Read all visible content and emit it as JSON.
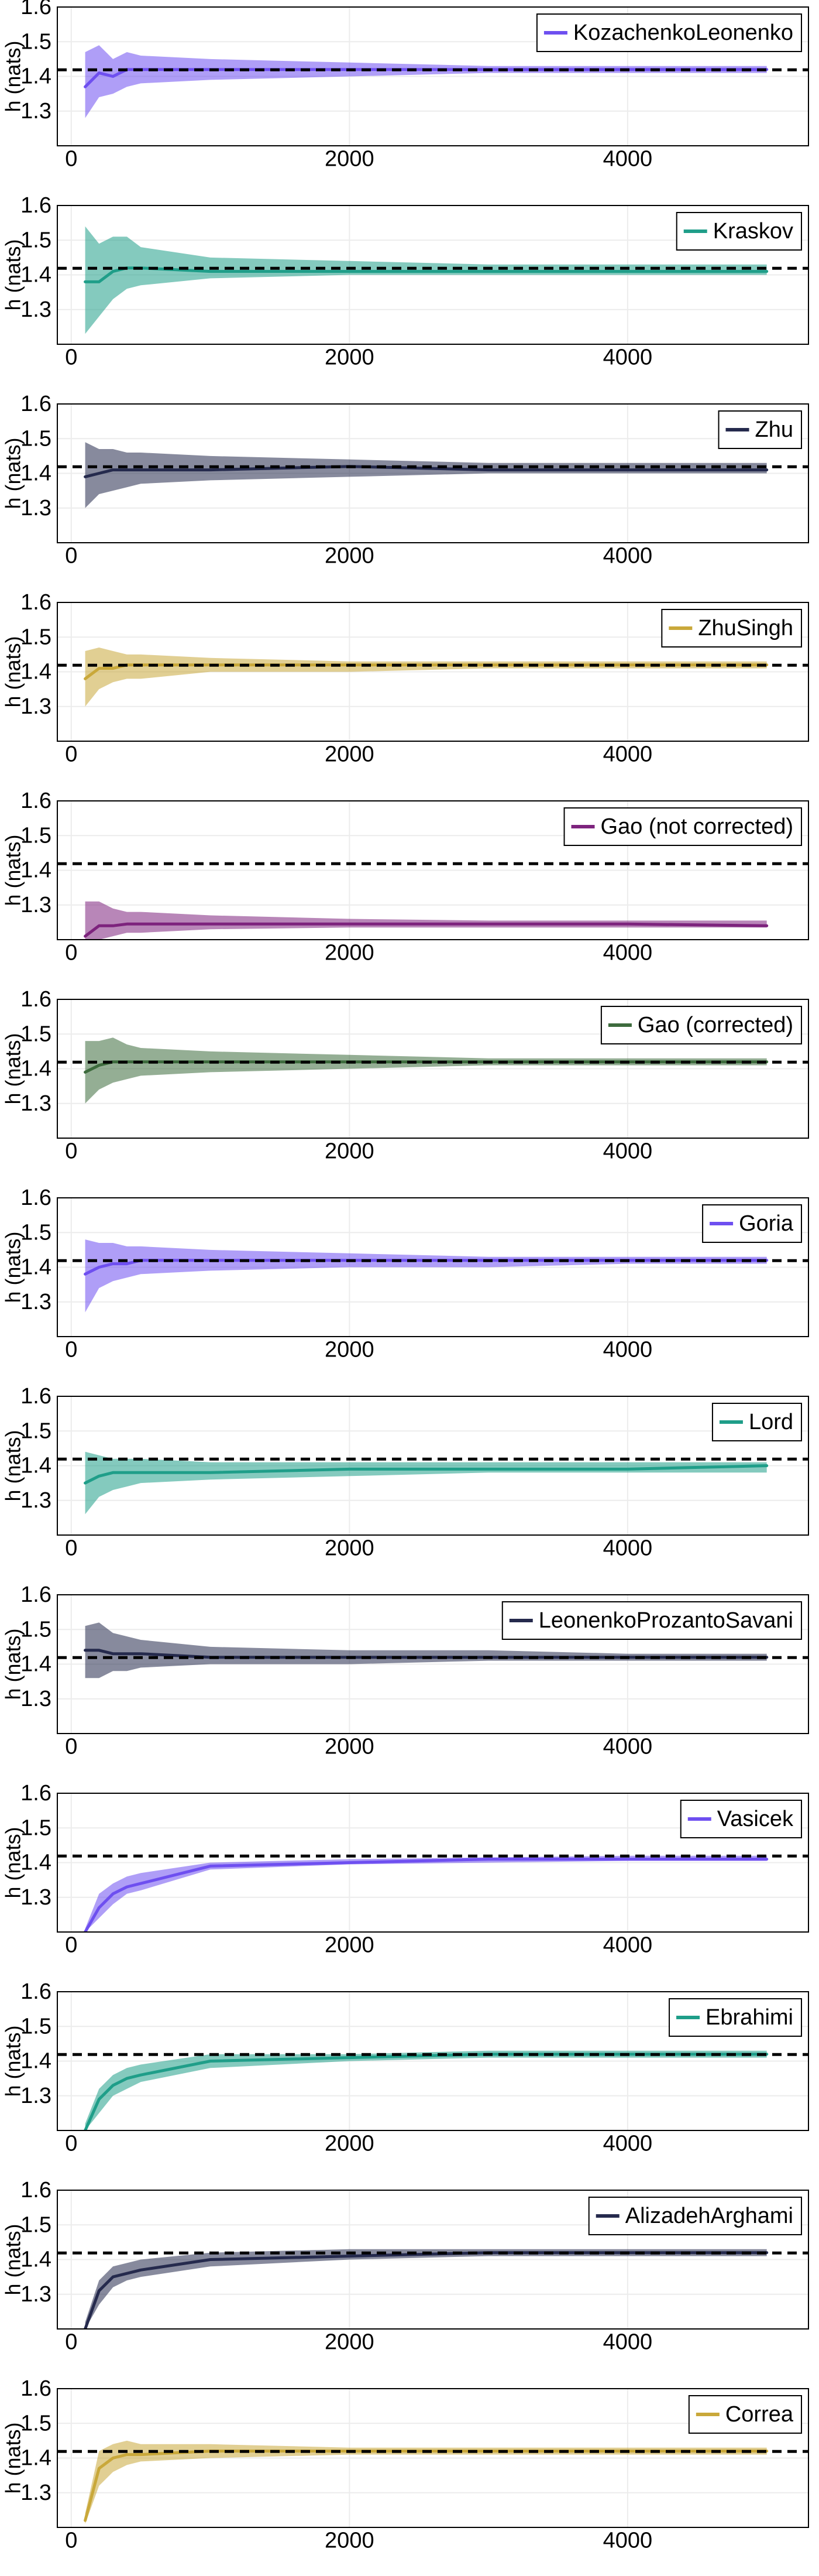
{
  "figure": {
    "reference_value": 1.419,
    "colors": {
      "grid": "#ececec",
      "frame": "#000000",
      "reference_line": "#000000"
    }
  },
  "chart_data": [
    {
      "type": "line",
      "name": "KozachenkoLeonenko",
      "color": "#6e4ff0",
      "x": [
        100,
        200,
        300,
        400,
        500,
        1000,
        2000,
        3000,
        4000,
        5000
      ],
      "mean": [
        1.37,
        1.41,
        1.4,
        1.42,
        1.42,
        1.42,
        1.42,
        1.42,
        1.42,
        1.42
      ],
      "lower": [
        1.28,
        1.34,
        1.35,
        1.37,
        1.38,
        1.39,
        1.4,
        1.41,
        1.41,
        1.41
      ],
      "upper": [
        1.47,
        1.49,
        1.45,
        1.47,
        1.46,
        1.45,
        1.44,
        1.43,
        1.43,
        1.43
      ],
      "ylim": [
        1.2,
        1.6
      ],
      "xlim": [
        -100,
        5300
      ],
      "yticks": [
        1.3,
        1.4,
        1.5,
        1.6
      ],
      "xticks": [
        0,
        2000,
        4000
      ],
      "ylabel": "h (nats)",
      "xlabel": "",
      "legend": "top-right",
      "grid": true
    },
    {
      "type": "line",
      "name": "Kraskov",
      "color": "#1f9e89",
      "x": [
        100,
        200,
        300,
        400,
        500,
        1000,
        2000,
        3000,
        4000,
        5000
      ],
      "mean": [
        1.38,
        1.38,
        1.41,
        1.42,
        1.42,
        1.41,
        1.41,
        1.41,
        1.41,
        1.41
      ],
      "lower": [
        1.23,
        1.28,
        1.33,
        1.36,
        1.37,
        1.39,
        1.4,
        1.4,
        1.4,
        1.4
      ],
      "upper": [
        1.54,
        1.49,
        1.51,
        1.51,
        1.48,
        1.45,
        1.44,
        1.43,
        1.43,
        1.43
      ],
      "ylim": [
        1.2,
        1.6
      ],
      "xlim": [
        -100,
        5300
      ],
      "yticks": [
        1.3,
        1.4,
        1.5,
        1.6
      ],
      "xticks": [
        0,
        2000,
        4000
      ],
      "ylabel": "h (nats)",
      "xlabel": "",
      "legend": "top-right",
      "grid": true
    },
    {
      "type": "line",
      "name": "Zhu",
      "color": "#252a4d",
      "x": [
        100,
        200,
        300,
        400,
        500,
        1000,
        2000,
        3000,
        4000,
        5000
      ],
      "mean": [
        1.39,
        1.4,
        1.41,
        1.41,
        1.41,
        1.41,
        1.42,
        1.41,
        1.41,
        1.41
      ],
      "lower": [
        1.3,
        1.34,
        1.35,
        1.36,
        1.37,
        1.38,
        1.39,
        1.4,
        1.4,
        1.4
      ],
      "upper": [
        1.49,
        1.47,
        1.47,
        1.46,
        1.46,
        1.45,
        1.44,
        1.43,
        1.43,
        1.43
      ],
      "ylim": [
        1.2,
        1.6
      ],
      "xlim": [
        -100,
        5300
      ],
      "yticks": [
        1.3,
        1.4,
        1.5,
        1.6
      ],
      "xticks": [
        0,
        2000,
        4000
      ],
      "ylabel": "h (nats)",
      "xlabel": "",
      "legend": "top-right",
      "grid": true
    },
    {
      "type": "line",
      "name": "ZhuSingh",
      "color": "#c9a83a",
      "x": [
        100,
        200,
        300,
        400,
        500,
        1000,
        2000,
        3000,
        4000,
        5000
      ],
      "mean": [
        1.38,
        1.41,
        1.41,
        1.42,
        1.42,
        1.42,
        1.42,
        1.42,
        1.42,
        1.42
      ],
      "lower": [
        1.3,
        1.35,
        1.37,
        1.38,
        1.38,
        1.4,
        1.4,
        1.41,
        1.41,
        1.41
      ],
      "upper": [
        1.46,
        1.47,
        1.46,
        1.45,
        1.45,
        1.44,
        1.43,
        1.43,
        1.43,
        1.43
      ],
      "ylim": [
        1.2,
        1.6
      ],
      "xlim": [
        -100,
        5300
      ],
      "yticks": [
        1.3,
        1.4,
        1.5,
        1.6
      ],
      "xticks": [
        0,
        2000,
        4000
      ],
      "ylabel": "h (nats)",
      "xlabel": "",
      "legend": "top-right",
      "grid": true
    },
    {
      "type": "line",
      "name": "Gao (not corrected)",
      "color": "#7d237d",
      "x": [
        100,
        200,
        300,
        400,
        500,
        1000,
        2000,
        3000,
        4000,
        5000
      ],
      "mean": [
        1.21,
        1.24,
        1.24,
        1.245,
        1.245,
        1.245,
        1.245,
        1.245,
        1.245,
        1.24
      ],
      "lower": [
        1.2,
        1.2,
        1.21,
        1.22,
        1.22,
        1.23,
        1.235,
        1.235,
        1.235,
        1.235
      ],
      "upper": [
        1.31,
        1.31,
        1.29,
        1.28,
        1.28,
        1.27,
        1.26,
        1.255,
        1.255,
        1.255
      ],
      "ylim": [
        1.2,
        1.6
      ],
      "xlim": [
        -100,
        5300
      ],
      "yticks": [
        1.3,
        1.4,
        1.5,
        1.6
      ],
      "xticks": [
        0,
        2000,
        4000
      ],
      "ylabel": "h (nats)",
      "xlabel": "",
      "legend": "top-right",
      "grid": true
    },
    {
      "type": "line",
      "name": "Gao (corrected)",
      "color": "#3d6b3d",
      "x": [
        100,
        200,
        300,
        400,
        500,
        1000,
        2000,
        3000,
        4000,
        5000
      ],
      "mean": [
        1.39,
        1.41,
        1.42,
        1.42,
        1.42,
        1.42,
        1.42,
        1.42,
        1.42,
        1.42
      ],
      "lower": [
        1.3,
        1.34,
        1.36,
        1.37,
        1.38,
        1.39,
        1.4,
        1.41,
        1.41,
        1.41
      ],
      "upper": [
        1.48,
        1.48,
        1.49,
        1.47,
        1.46,
        1.45,
        1.44,
        1.43,
        1.43,
        1.43
      ],
      "ylim": [
        1.2,
        1.6
      ],
      "xlim": [
        -100,
        5300
      ],
      "yticks": [
        1.3,
        1.4,
        1.5,
        1.6
      ],
      "xticks": [
        0,
        2000,
        4000
      ],
      "ylabel": "h (nats)",
      "xlabel": "",
      "legend": "top-right",
      "grid": true
    },
    {
      "type": "line",
      "name": "Goria",
      "color": "#6e4ff0",
      "x": [
        100,
        200,
        300,
        400,
        500,
        1000,
        2000,
        3000,
        4000,
        5000
      ],
      "mean": [
        1.38,
        1.4,
        1.41,
        1.41,
        1.42,
        1.42,
        1.42,
        1.42,
        1.42,
        1.42
      ],
      "lower": [
        1.27,
        1.34,
        1.36,
        1.37,
        1.38,
        1.39,
        1.4,
        1.4,
        1.41,
        1.41
      ],
      "upper": [
        1.48,
        1.47,
        1.47,
        1.46,
        1.46,
        1.45,
        1.44,
        1.43,
        1.43,
        1.43
      ],
      "ylim": [
        1.2,
        1.6
      ],
      "xlim": [
        -100,
        5300
      ],
      "yticks": [
        1.3,
        1.4,
        1.5,
        1.6
      ],
      "xticks": [
        0,
        2000,
        4000
      ],
      "ylabel": "h (nats)",
      "xlabel": "",
      "legend": "top-right",
      "grid": true
    },
    {
      "type": "line",
      "name": "Lord",
      "color": "#1f9e89",
      "x": [
        100,
        200,
        300,
        400,
        500,
        1000,
        2000,
        3000,
        4000,
        5000
      ],
      "mean": [
        1.35,
        1.37,
        1.38,
        1.38,
        1.38,
        1.38,
        1.39,
        1.39,
        1.39,
        1.4
      ],
      "lower": [
        1.26,
        1.31,
        1.33,
        1.34,
        1.35,
        1.36,
        1.37,
        1.38,
        1.38,
        1.38
      ],
      "upper": [
        1.44,
        1.43,
        1.42,
        1.42,
        1.42,
        1.41,
        1.41,
        1.41,
        1.41,
        1.41
      ],
      "ylim": [
        1.2,
        1.6
      ],
      "xlim": [
        -100,
        5300
      ],
      "yticks": [
        1.3,
        1.4,
        1.5,
        1.6
      ],
      "xticks": [
        0,
        2000,
        4000
      ],
      "ylabel": "h (nats)",
      "xlabel": "",
      "legend": "top-right",
      "grid": true
    },
    {
      "type": "line",
      "name": "LeonenkoProzantoSavani",
      "color": "#252a4d",
      "x": [
        100,
        200,
        300,
        400,
        500,
        1000,
        2000,
        3000,
        4000,
        5000
      ],
      "mean": [
        1.44,
        1.44,
        1.43,
        1.43,
        1.43,
        1.42,
        1.42,
        1.42,
        1.42,
        1.42
      ],
      "lower": [
        1.36,
        1.36,
        1.38,
        1.38,
        1.39,
        1.4,
        1.4,
        1.41,
        1.41,
        1.41
      ],
      "upper": [
        1.51,
        1.52,
        1.49,
        1.48,
        1.47,
        1.45,
        1.44,
        1.44,
        1.43,
        1.43
      ],
      "ylim": [
        1.2,
        1.6
      ],
      "xlim": [
        -100,
        5300
      ],
      "yticks": [
        1.3,
        1.4,
        1.5,
        1.6
      ],
      "xticks": [
        0,
        2000,
        4000
      ],
      "ylabel": "h (nats)",
      "xlabel": "",
      "legend": "top-right",
      "grid": true
    },
    {
      "type": "line",
      "name": "Vasicek",
      "color": "#6e4ff0",
      "x": [
        100,
        200,
        300,
        400,
        500,
        1000,
        2000,
        3000,
        4000,
        5000
      ],
      "mean": [
        1.2,
        1.27,
        1.31,
        1.33,
        1.34,
        1.39,
        1.4,
        1.41,
        1.41,
        1.41
      ],
      "lower": [
        1.2,
        1.24,
        1.28,
        1.31,
        1.32,
        1.38,
        1.395,
        1.4,
        1.405,
        1.405
      ],
      "upper": [
        1.21,
        1.31,
        1.34,
        1.36,
        1.37,
        1.4,
        1.41,
        1.415,
        1.42,
        1.42
      ],
      "ylim": [
        1.2,
        1.6
      ],
      "xlim": [
        -100,
        5300
      ],
      "yticks": [
        1.3,
        1.4,
        1.5,
        1.6
      ],
      "xticks": [
        0,
        2000,
        4000
      ],
      "ylabel": "h (nats)",
      "xlabel": "",
      "legend": "top-right",
      "grid": true
    },
    {
      "type": "line",
      "name": "Ebrahimi",
      "color": "#1f9e89",
      "x": [
        100,
        200,
        300,
        400,
        500,
        1000,
        2000,
        3000,
        4000,
        5000
      ],
      "mean": [
        1.2,
        1.29,
        1.33,
        1.35,
        1.36,
        1.4,
        1.41,
        1.42,
        1.42,
        1.42
      ],
      "lower": [
        1.2,
        1.25,
        1.3,
        1.32,
        1.34,
        1.38,
        1.4,
        1.41,
        1.41,
        1.41
      ],
      "upper": [
        1.22,
        1.32,
        1.36,
        1.38,
        1.39,
        1.42,
        1.42,
        1.43,
        1.43,
        1.43
      ],
      "ylim": [
        1.2,
        1.6
      ],
      "xlim": [
        -100,
        5300
      ],
      "yticks": [
        1.3,
        1.4,
        1.5,
        1.6
      ],
      "xticks": [
        0,
        2000,
        4000
      ],
      "ylabel": "h (nats)",
      "xlabel": "",
      "legend": "top-right",
      "grid": true
    },
    {
      "type": "line",
      "name": "AlizadehArghami",
      "color": "#252a4d",
      "x": [
        100,
        200,
        300,
        400,
        500,
        1000,
        2000,
        3000,
        4000,
        5000
      ],
      "mean": [
        1.2,
        1.31,
        1.35,
        1.36,
        1.37,
        1.4,
        1.41,
        1.42,
        1.42,
        1.42
      ],
      "lower": [
        1.2,
        1.27,
        1.32,
        1.34,
        1.35,
        1.38,
        1.4,
        1.41,
        1.41,
        1.41
      ],
      "upper": [
        1.22,
        1.34,
        1.38,
        1.39,
        1.4,
        1.42,
        1.43,
        1.43,
        1.43,
        1.43
      ],
      "ylim": [
        1.2,
        1.6
      ],
      "xlim": [
        -100,
        5300
      ],
      "yticks": [
        1.3,
        1.4,
        1.5,
        1.6
      ],
      "xticks": [
        0,
        2000,
        4000
      ],
      "ylabel": "h (nats)",
      "xlabel": "",
      "legend": "top-right",
      "grid": true
    },
    {
      "type": "line",
      "name": "Correa",
      "color": "#c9a83a",
      "x": [
        100,
        200,
        300,
        400,
        500,
        1000,
        2000,
        3000,
        4000,
        5000
      ],
      "mean": [
        1.22,
        1.37,
        1.4,
        1.41,
        1.41,
        1.42,
        1.42,
        1.42,
        1.42,
        1.42
      ],
      "lower": [
        1.21,
        1.32,
        1.36,
        1.38,
        1.39,
        1.4,
        1.41,
        1.41,
        1.41,
        1.41
      ],
      "upper": [
        1.24,
        1.42,
        1.44,
        1.45,
        1.44,
        1.44,
        1.43,
        1.43,
        1.43,
        1.43
      ],
      "ylim": [
        1.2,
        1.6
      ],
      "xlim": [
        -100,
        5300
      ],
      "yticks": [
        1.3,
        1.4,
        1.5,
        1.6
      ],
      "xticks": [
        0,
        2000,
        4000
      ],
      "ylabel": "h (nats)",
      "xlabel": "",
      "legend": "top-right",
      "grid": true
    }
  ]
}
